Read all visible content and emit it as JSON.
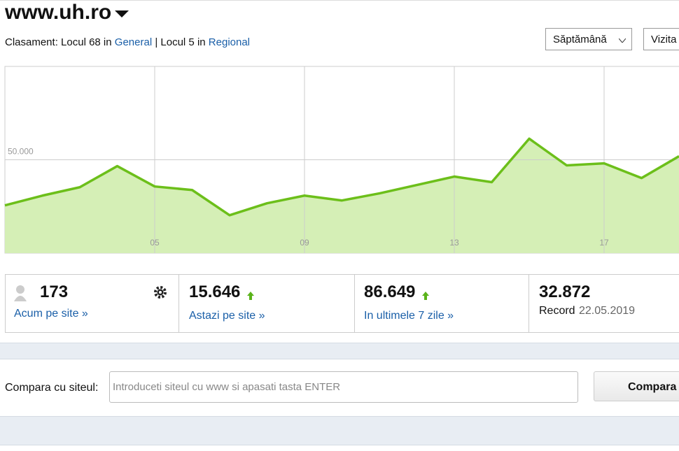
{
  "header": {
    "site": "www.uh.ro",
    "ranking": {
      "label": "Clasament:",
      "items": [
        {
          "text": "Locul 68 in",
          "link": "General"
        },
        {
          "text": "Locul 5 in",
          "link": "Regional"
        }
      ],
      "separator": "|"
    },
    "period": "Săptămână",
    "metric": "Vizita"
  },
  "chart_data": {
    "type": "line",
    "x": [
      1,
      2,
      3,
      4,
      5,
      6,
      7,
      8,
      9,
      10,
      11,
      12,
      13,
      14,
      15,
      16,
      17,
      18,
      19
    ],
    "series": [
      {
        "color": "#6cbf1a",
        "values": [
          25600,
          30800,
          35300,
          46600,
          35700,
          33800,
          20300,
          26700,
          30800,
          28200,
          32000,
          36500,
          41000,
          38000,
          61300,
          47000,
          48100,
          40200,
          51900
        ]
      }
    ],
    "xlim": [
      1,
      19
    ],
    "xticks": [
      {
        "value": 5,
        "label": "05"
      },
      {
        "value": 9,
        "label": "09"
      },
      {
        "value": 13,
        "label": "13"
      },
      {
        "value": 17,
        "label": "17"
      }
    ],
    "ylim": [
      0,
      100000
    ],
    "yticks": [
      {
        "value": 50000,
        "label": "50.000"
      }
    ],
    "grid": true,
    "area_color": "#d5efb6"
  },
  "stats": [
    {
      "value": "173",
      "link": "Acum pe site »"
    },
    {
      "value": "15.646",
      "link": "Astazi pe site »"
    },
    {
      "value": "86.649",
      "link": "In ultimele 7 zile »"
    },
    {
      "value": "32.872",
      "label": "Record",
      "date": "22.05.2019"
    }
  ],
  "compare": {
    "label": "Compara cu siteul:",
    "placeholder": "Introduceti siteul cu www si apasati tasta ENTER",
    "button": "Compara"
  }
}
